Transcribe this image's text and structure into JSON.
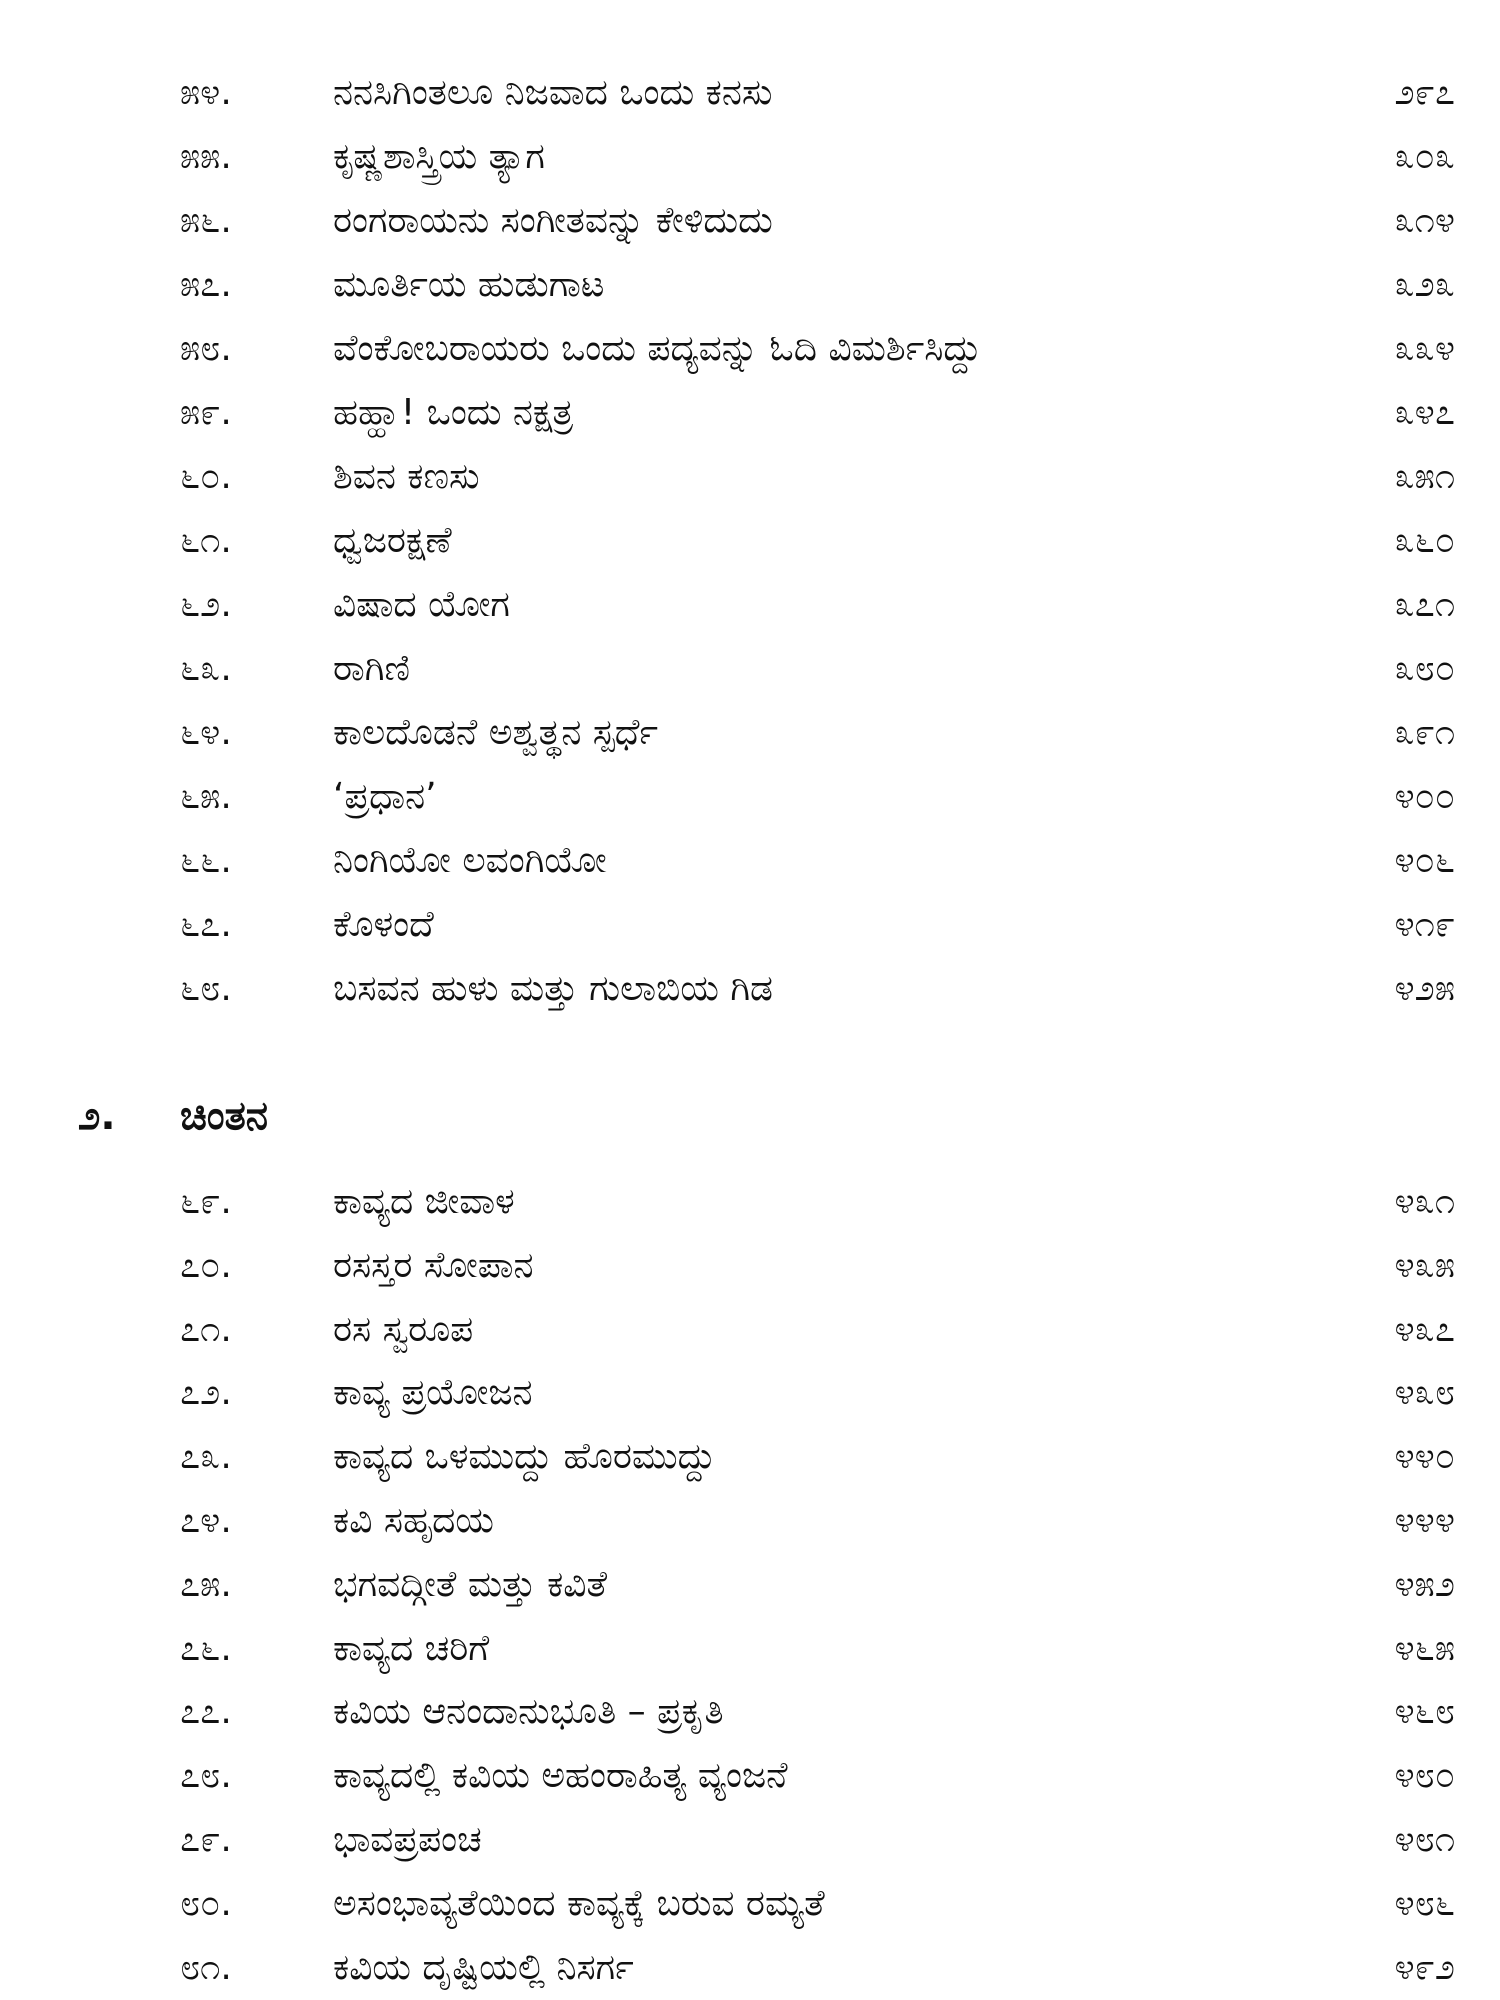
{
  "section1": {
    "entries": [
      {
        "num": "೫೪.",
        "title": "ನನಸಿಗಿಂತಲೂ ನಿಜವಾದ ಒಂದು ಕನಸು",
        "page": "೨೯೭"
      },
      {
        "num": "೫೫.",
        "title": "ಕೃಷ್ಣಶಾಸ್ತ್ರಿಯ ತ್ಯಾಗ",
        "page": "೩೦೩"
      },
      {
        "num": "೫೬.",
        "title": "ರಂಗರಾಯನು ಸಂಗೀತವನ್ನು ಕೇಳಿದುದು",
        "page": "೩೧೪"
      },
      {
        "num": "೫೭.",
        "title": "ಮೂರ್ತಿಯ ಹುಡುಗಾಟ",
        "page": "೩೨೩"
      },
      {
        "num": "೫೮.",
        "title": "ವೆಂಕೋಬರಾಯರು ಒಂದು ಪದ್ಯವನ್ನು ಓದಿ ವಿಮರ್ಶಿಸಿದ್ದು",
        "page": "೩೩೪"
      },
      {
        "num": "೫೯.",
        "title": "ಹಹ್ಹಾ! ಒಂದು ನಕ್ಷತ್ರ",
        "page": "೩೪೭"
      },
      {
        "num": "೬೦.",
        "title": "ಶಿವನ ಕಣಸು",
        "page": "೩೫೧"
      },
      {
        "num": "೬೧.",
        "title": "ಧ್ವಜರಕ್ಷಣೆ",
        "page": "೩೬೦"
      },
      {
        "num": "೬೨.",
        "title": "ವಿಷಾದ ಯೋಗ",
        "page": "೩೭೧"
      },
      {
        "num": "೬೩.",
        "title": "ರಾಗಿಣಿ",
        "page": "೩೮೦"
      },
      {
        "num": "೬೪.",
        "title": "ಕಾಲದೊಡನೆ ಅಶ್ವತ್ಥನ ಸ್ಪರ್ಧೆ",
        "page": "೩೯೧"
      },
      {
        "num": "೬೫.",
        "title": "‘ಪ್ರಧಾನ’",
        "page": "೪೦೦"
      },
      {
        "num": "೬೬.",
        "title": "ನಿಂಗಿಯೋ ಲವಂಗಿಯೋ",
        "page": "೪೦೬"
      },
      {
        "num": "೬೭.",
        "title": "ಕೊಳಂದೆ",
        "page": "೪೧೯"
      },
      {
        "num": "೬೮.",
        "title": "ಬಸವನ ಹುಳು ಮತ್ತು ಗುಲಾಬಿಯ ಗಿಡ",
        "page": "೪೨೫"
      }
    ]
  },
  "section2": {
    "number": "೨.",
    "title": "ಚಿಂತನ",
    "entries": [
      {
        "num": "೬೯.",
        "title": "ಕಾವ್ಯದ ಜೀವಾಳ",
        "page": "೪೩೧"
      },
      {
        "num": "೭೦.",
        "title": "ರಸಸ್ತರ ಸೋಪಾನ",
        "page": "೪೩೫"
      },
      {
        "num": "೭೧.",
        "title": "ರಸ ಸ್ವರೂಪ",
        "page": "೪೩೭"
      },
      {
        "num": "೭೨.",
        "title": "ಕಾವ್ಯ ಪ್ರಯೋಜನ",
        "page": "೪೩೮"
      },
      {
        "num": "೭೩.",
        "title": "ಕಾವ್ಯದ ಒಳಮುದ್ದು ಹೊರಮುದ್ದು",
        "page": "೪೪೦"
      },
      {
        "num": "೭೪.",
        "title": "ಕವಿ ಸಹೃದಯ",
        "page": "೪೪೪"
      },
      {
        "num": "೭೫.",
        "title": "ಭಗವದ್ಗೀತೆ ಮತ್ತು ಕವಿತೆ",
        "page": "೪೫೨"
      },
      {
        "num": "೭೬.",
        "title": "ಕಾವ್ಯದ ಚರಿಗೆ",
        "page": "೪೬೫"
      },
      {
        "num": "೭೭.",
        "title": "ಕವಿಯ ಆನಂದಾನುಭೂತಿ – ಪ್ರಕೃತಿ",
        "page": "೪೬೮"
      },
      {
        "num": "೭೮.",
        "title": "ಕಾವ್ಯದಲ್ಲಿ ಕವಿಯ ಅಹಂರಾಹಿತ್ಯ ವ್ಯಂಜನೆ",
        "page": "೪೮೦"
      },
      {
        "num": "೭೯.",
        "title": "ಭಾವಪ್ರಪಂಚ",
        "page": "೪೮೧"
      },
      {
        "num": "೮೦.",
        "title": "ಅಸಂಭಾವ್ಯತೆಯಿಂದ ಕಾವ್ಯಕ್ಕೆ ಬರುವ ರಮ್ಯತೆ",
        "page": "೪೮೬"
      },
      {
        "num": "೮೧.",
        "title": "ಕವಿಯ ದೃಷ್ಟಿಯಲ್ಲಿ ನಿಸರ್ಗ",
        "page": "೪೯೨"
      }
    ]
  }
}
